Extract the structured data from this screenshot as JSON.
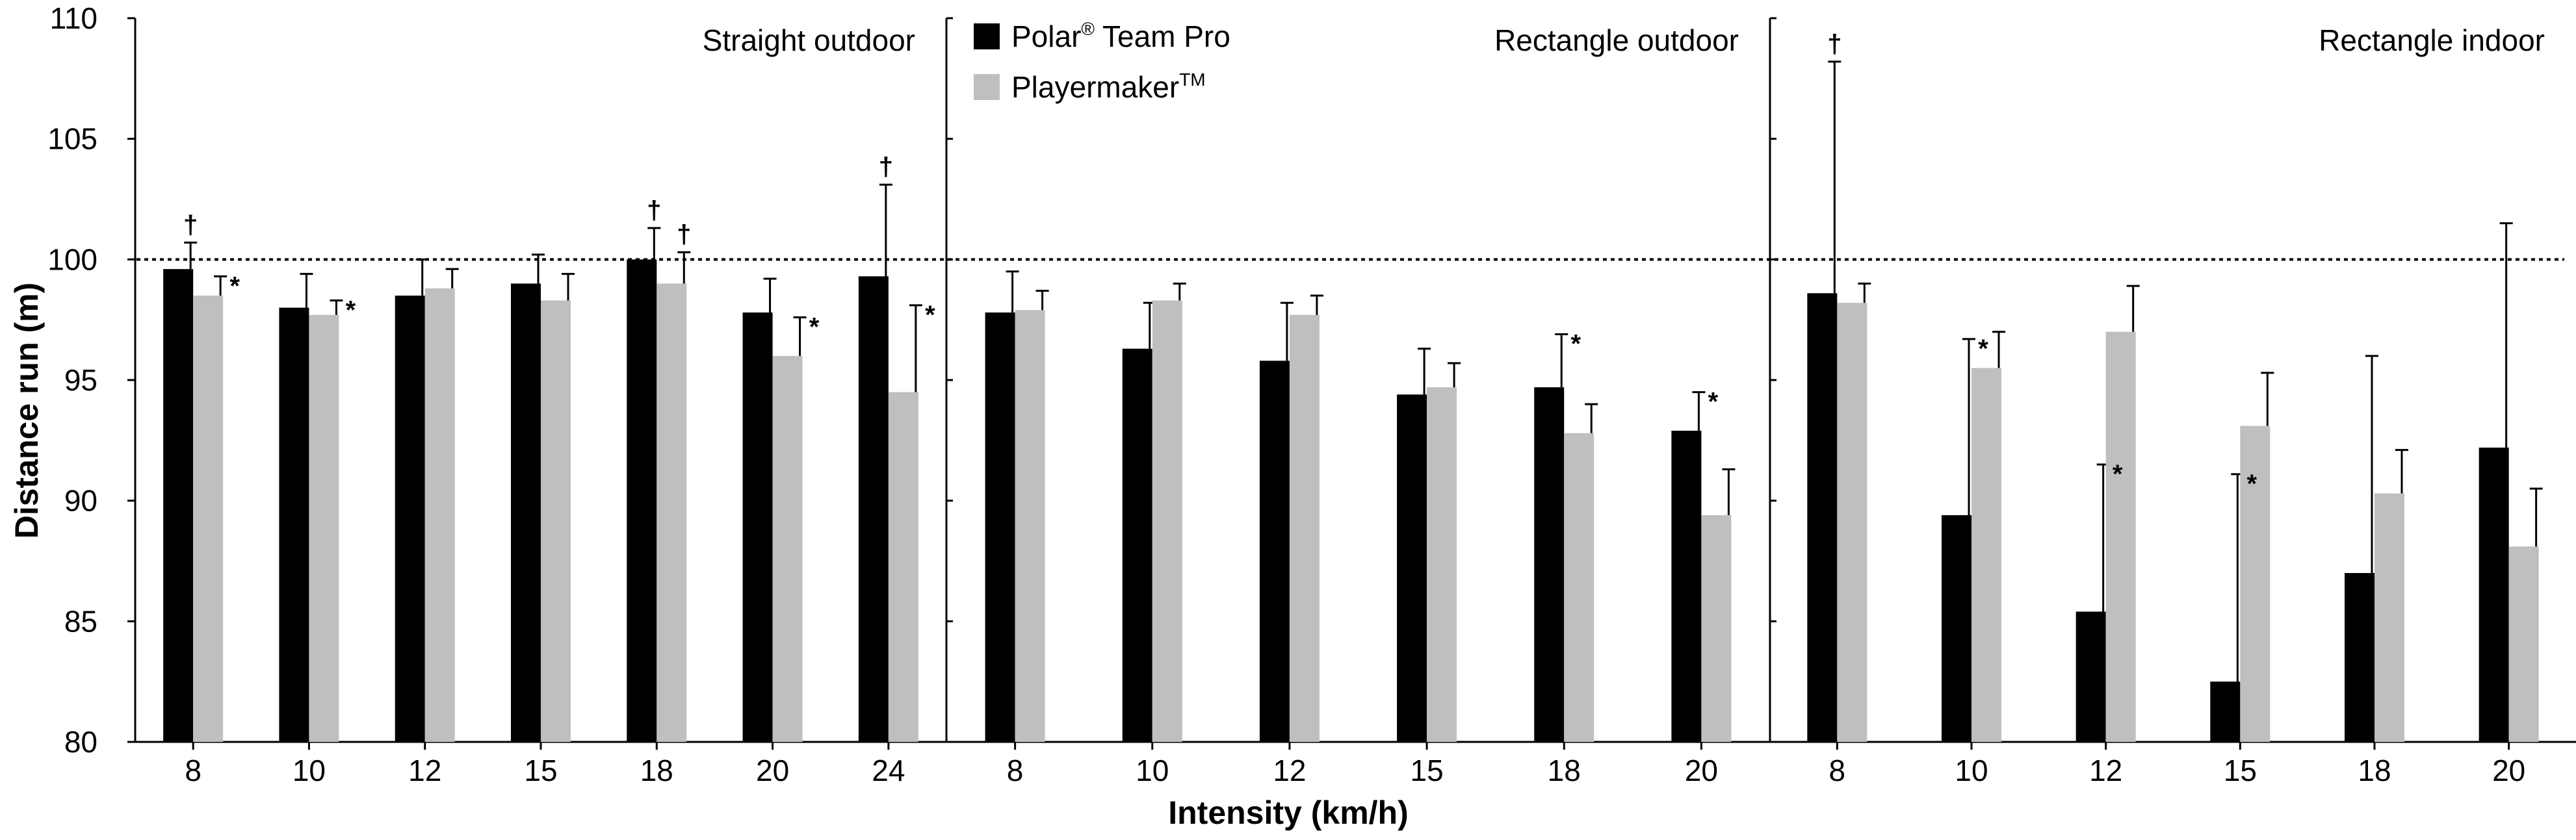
{
  "chart_data": {
    "type": "bar",
    "ylabel": "Distance run (m)",
    "xlabel": "Intensity (km/h)",
    "ylim": [
      80,
      110
    ],
    "yticks": [
      80,
      85,
      90,
      95,
      100,
      105,
      110
    ],
    "reference_line": 100,
    "legend": {
      "items": [
        {
          "name": "Polar",
          "sup": "®",
          "suffix": " Team Pro",
          "color": "#000000"
        },
        {
          "name": "Playermaker",
          "sup": "TM",
          "suffix": "",
          "color": "#bfbfbf"
        }
      ],
      "placement": "top-left of middle panel"
    },
    "series_colors": {
      "polar": "#000000",
      "playermaker": "#bfbfbf"
    },
    "panels": [
      {
        "title": "Straight outdoor",
        "categories": [
          "8",
          "10",
          "12",
          "15",
          "18",
          "20",
          "24"
        ],
        "polar": {
          "values": [
            99.6,
            98.0,
            98.5,
            99.0,
            100.0,
            97.8,
            99.3
          ],
          "errors": [
            1.1,
            1.4,
            1.5,
            1.2,
            1.3,
            1.4,
            3.8
          ]
        },
        "playermaker": {
          "values": [
            98.5,
            97.7,
            98.8,
            98.3,
            99.0,
            96.0,
            94.5
          ],
          "errors": [
            0.8,
            0.6,
            0.8,
            1.1,
            1.3,
            1.6,
            3.6
          ]
        },
        "markers": [
          {
            "index": 0,
            "series": "polar",
            "symbol": "†"
          },
          {
            "index": 0,
            "series": "playermaker",
            "symbol": "*"
          },
          {
            "index": 1,
            "series": "playermaker",
            "symbol": "*"
          },
          {
            "index": 4,
            "series": "polar",
            "symbol": "†"
          },
          {
            "index": 4,
            "series": "playermaker",
            "symbol": "†"
          },
          {
            "index": 5,
            "series": "playermaker",
            "symbol": "*"
          },
          {
            "index": 6,
            "series": "polar",
            "symbol": "†"
          },
          {
            "index": 6,
            "series": "playermaker",
            "symbol": "*"
          }
        ]
      },
      {
        "title": "Rectangle outdoor",
        "categories": [
          "8",
          "10",
          "12",
          "15",
          "18",
          "20"
        ],
        "polar": {
          "values": [
            97.8,
            96.3,
            95.8,
            94.4,
            94.7,
            92.9
          ],
          "errors": [
            1.7,
            1.9,
            2.4,
            1.9,
            2.2,
            1.6
          ]
        },
        "playermaker": {
          "values": [
            97.9,
            98.3,
            97.7,
            94.7,
            92.8,
            89.4
          ],
          "errors": [
            0.8,
            0.7,
            0.8,
            1.0,
            1.2,
            1.9
          ]
        },
        "markers": [
          {
            "index": 4,
            "series": "polar",
            "symbol": "*"
          },
          {
            "index": 5,
            "series": "polar",
            "symbol": "*"
          }
        ]
      },
      {
        "title": "Rectangle indoor",
        "categories": [
          "8",
          "10",
          "12",
          "15",
          "18",
          "20"
        ],
        "polar": {
          "values": [
            98.6,
            89.4,
            85.4,
            82.5,
            87.0,
            92.2
          ],
          "errors": [
            9.6,
            7.3,
            6.1,
            8.6,
            9.0,
            9.3
          ]
        },
        "playermaker": {
          "values": [
            98.2,
            95.5,
            97.0,
            93.1,
            90.3,
            88.1
          ],
          "errors": [
            0.8,
            1.5,
            1.9,
            2.2,
            1.8,
            2.4
          ]
        },
        "markers": [
          {
            "index": 0,
            "series": "polar",
            "symbol": "†"
          },
          {
            "index": 1,
            "series": "polar",
            "symbol": "*"
          },
          {
            "index": 2,
            "series": "polar",
            "symbol": "*"
          },
          {
            "index": 3,
            "series": "polar",
            "symbol": "*"
          }
        ]
      }
    ]
  }
}
